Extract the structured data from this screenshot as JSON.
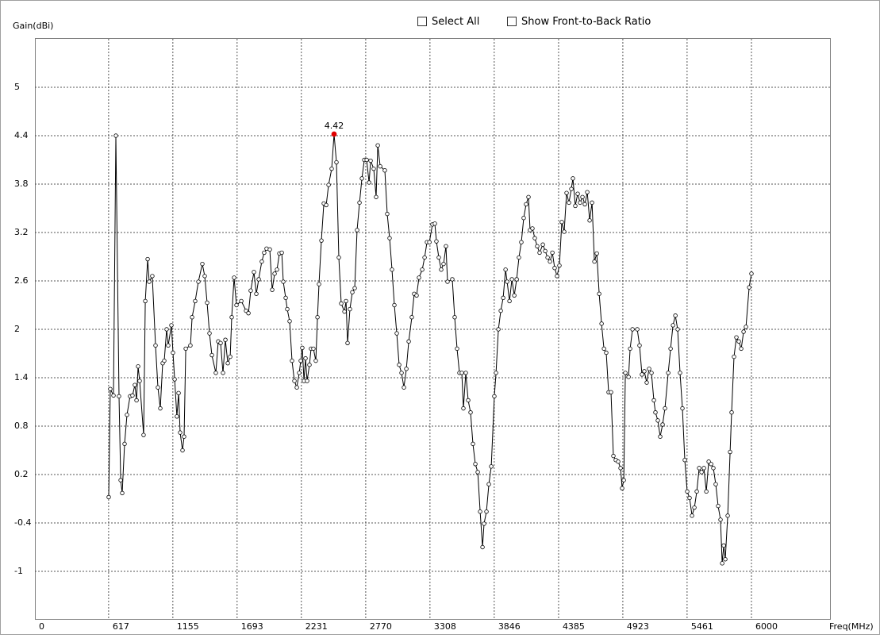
{
  "controls": [
    "Select All",
    "Show Front-to-Back Ratio"
  ],
  "chart_data": {
    "type": "line",
    "y_label": "Gain(dBi)",
    "x_label": "Freq(MHz)",
    "color": "#000000",
    "peak_color": "#e00000",
    "grid": true,
    "xlim": [
      0,
      6000
    ],
    "xticks": [
      0,
      617,
      1155,
      1693,
      2231,
      2770,
      3308,
      3846,
      4385,
      4923,
      5461,
      6000
    ],
    "ylim": [
      -1.6,
      5.6
    ],
    "yticks": [
      5,
      4.4,
      3.8,
      3.2,
      2.6,
      2,
      1.4,
      0.8,
      0.2,
      -0.4,
      -1
    ],
    "x": [
      618,
      631,
      658,
      678,
      704,
      718,
      731,
      751,
      771,
      797,
      817,
      837,
      851,
      864,
      877,
      910,
      924,
      944,
      957,
      983,
      1010,
      1030,
      1050,
      1070,
      1083,
      1103,
      1116,
      1143,
      1156,
      1170,
      1189,
      1203,
      1216,
      1236,
      1249,
      1263,
      1302,
      1316,
      1342,
      1369,
      1402,
      1422,
      1442,
      1462,
      1482,
      1515,
      1535,
      1555,
      1575,
      1595,
      1615,
      1635,
      1648,
      1668,
      1688,
      1728,
      1768,
      1788,
      1807,
      1834,
      1854,
      1874,
      1900,
      1920,
      1940,
      1967,
      1987,
      2007,
      2027,
      2047,
      2067,
      2080,
      2100,
      2113,
      2133,
      2153,
      2173,
      2193,
      2213,
      2226,
      2239,
      2253,
      2266,
      2279,
      2299,
      2312,
      2332,
      2352,
      2366,
      2379,
      2399,
      2419,
      2439,
      2459,
      2485,
      2505,
      2525,
      2545,
      2565,
      2592,
      2605,
      2618,
      2638,
      2658,
      2678,
      2698,
      2718,
      2738,
      2758,
      2778,
      2798,
      2811,
      2837,
      2857,
      2871,
      2891,
      2930,
      2950,
      2970,
      2990,
      3010,
      3030,
      3050,
      3070,
      3090,
      3110,
      3130,
      3156,
      3176,
      3196,
      3216,
      3243,
      3263,
      3283,
      3303,
      3329,
      3349,
      3362,
      3382,
      3402,
      3422,
      3442,
      3455,
      3495,
      3515,
      3535,
      3555,
      3575,
      3588,
      3608,
      3628,
      3648,
      3668,
      3688,
      3708,
      3728,
      3748,
      3761,
      3781,
      3801,
      3821,
      3847,
      3861,
      3881,
      3901,
      3921,
      3941,
      3954,
      3974,
      3994,
      4014,
      4034,
      4053,
      4073,
      4093,
      4113,
      4133,
      4146,
      4166,
      4186,
      4206,
      4226,
      4253,
      4273,
      4293,
      4313,
      4333,
      4352,
      4372,
      4392,
      4412,
      4432,
      4452,
      4472,
      4492,
      4505,
      4525,
      4545,
      4565,
      4585,
      4605,
      4625,
      4645,
      4665,
      4685,
      4705,
      4725,
      4745,
      4765,
      4784,
      4804,
      4824,
      4844,
      4864,
      4884,
      4904,
      4917,
      4931,
      4944,
      4971,
      4984,
      5004,
      5044,
      5063,
      5083,
      5103,
      5123,
      5143,
      5163,
      5183,
      5196,
      5216,
      5236,
      5256,
      5276,
      5303,
      5323,
      5343,
      5363,
      5382,
      5402,
      5422,
      5442,
      5462,
      5482,
      5502,
      5522,
      5542,
      5562,
      5582,
      5602,
      5622,
      5642,
      5662,
      5681,
      5701,
      5721,
      5741,
      5755,
      5768,
      5781,
      5801,
      5821,
      5834,
      5854,
      5874,
      5894,
      5914,
      5934,
      5954,
      5981,
      6000
    ],
    "values": [
      -0.08,
      1.26,
      1.18,
      4.4,
      1.17,
      0.13,
      -0.03,
      0.58,
      0.94,
      1.17,
      1.18,
      1.31,
      1.12,
      1.54,
      1.36,
      0.69,
      2.35,
      2.87,
      2.59,
      2.66,
      1.8,
      1.28,
      1.02,
      1.58,
      1.61,
      2.0,
      1.8,
      2.05,
      1.71,
      1.38,
      0.92,
      1.21,
      0.72,
      0.5,
      0.67,
      1.76,
      1.8,
      2.15,
      2.35,
      2.59,
      2.81,
      2.66,
      2.33,
      1.95,
      1.68,
      1.46,
      1.85,
      1.83,
      1.46,
      1.87,
      1.58,
      1.66,
      2.15,
      2.64,
      2.3,
      2.35,
      2.23,
      2.2,
      2.48,
      2.71,
      2.44,
      2.62,
      2.84,
      2.95,
      3.0,
      2.99,
      2.49,
      2.69,
      2.74,
      2.94,
      2.95,
      2.59,
      2.39,
      2.25,
      2.1,
      1.61,
      1.36,
      1.28,
      1.46,
      1.61,
      1.77,
      1.36,
      1.64,
      1.36,
      1.56,
      1.76,
      1.76,
      1.61,
      2.15,
      2.56,
      3.1,
      3.56,
      3.54,
      3.79,
      3.99,
      4.42,
      4.07,
      2.89,
      2.32,
      2.22,
      2.35,
      1.83,
      2.25,
      2.46,
      2.51,
      3.23,
      3.57,
      3.87,
      4.1,
      4.1,
      3.82,
      4.09,
      3.99,
      3.64,
      4.28,
      4.02,
      3.97,
      3.43,
      3.13,
      2.74,
      2.3,
      1.95,
      1.56,
      1.46,
      1.28,
      1.51,
      1.85,
      2.15,
      2.44,
      2.42,
      2.64,
      2.74,
      2.89,
      3.08,
      3.08,
      3.3,
      3.31,
      3.09,
      2.89,
      2.74,
      2.81,
      3.03,
      2.59,
      2.62,
      2.15,
      1.76,
      1.46,
      1.46,
      1.02,
      1.46,
      1.12,
      0.97,
      0.58,
      0.33,
      0.23,
      -0.26,
      -0.7,
      -0.41,
      -0.26,
      0.08,
      0.3,
      1.17,
      1.46,
      2.0,
      2.23,
      2.39,
      2.74,
      2.59,
      2.35,
      2.62,
      2.42,
      2.62,
      2.89,
      3.08,
      3.38,
      3.55,
      3.64,
      3.23,
      3.25,
      3.13,
      3.03,
      2.95,
      3.05,
      2.97,
      2.89,
      2.84,
      2.95,
      2.76,
      2.66,
      2.79,
      3.33,
      3.21,
      3.69,
      3.57,
      3.74,
      3.87,
      3.53,
      3.68,
      3.57,
      3.64,
      3.55,
      3.7,
      3.35,
      3.57,
      2.84,
      2.94,
      2.44,
      2.07,
      1.76,
      1.71,
      1.22,
      1.22,
      0.43,
      0.38,
      0.36,
      0.28,
      0.03,
      0.13,
      1.46,
      1.41,
      1.76,
      2.0,
      2.0,
      1.8,
      1.44,
      1.48,
      1.34,
      1.51,
      1.46,
      1.12,
      0.97,
      0.87,
      0.67,
      0.82,
      1.02,
      1.46,
      1.76,
      2.05,
      2.17,
      2.0,
      1.46,
      1.02,
      0.38,
      -0.01,
      -0.09,
      -0.31,
      -0.21,
      -0.01,
      0.28,
      0.23,
      0.28,
      -0.01,
      0.36,
      0.33,
      0.28,
      0.08,
      -0.19,
      -0.36,
      -0.9,
      -0.68,
      -0.85,
      -0.31,
      0.48,
      0.97,
      1.66,
      1.9,
      1.85,
      1.76,
      1.97,
      2.03,
      2.52,
      2.69
    ]
  }
}
